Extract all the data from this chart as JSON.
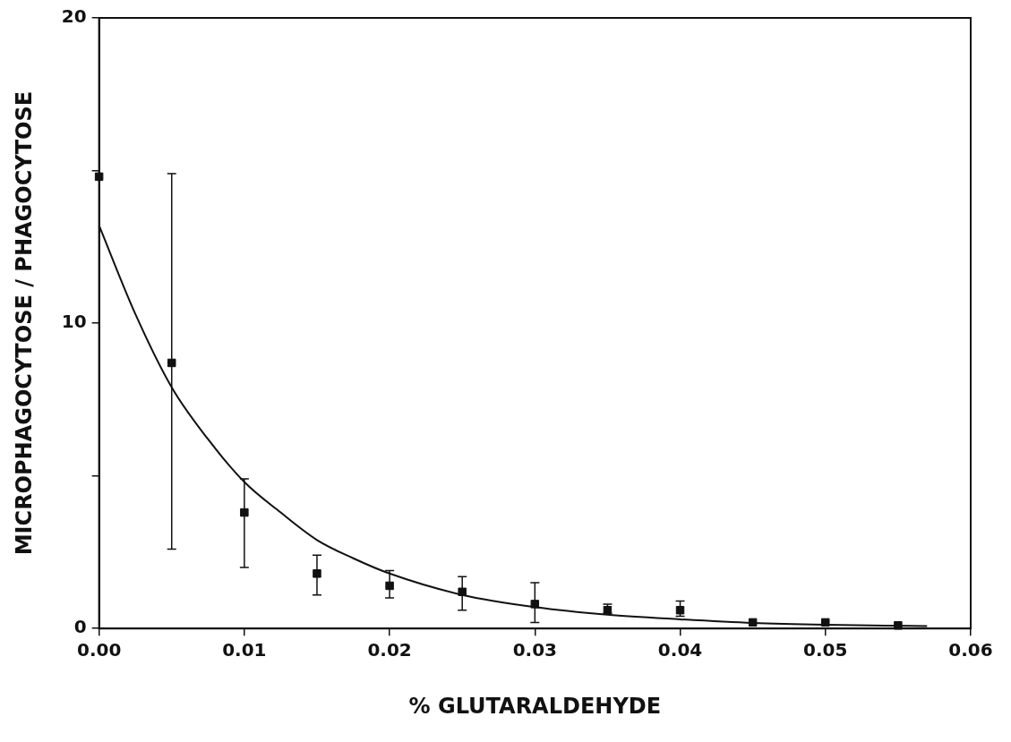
{
  "chart_data": {
    "type": "scatter",
    "xlabel": "% GLUTARALDEHYDE",
    "ylabel": "MICROPHAGOCYTOSE / PHAGOCYTOSE",
    "xlim": [
      0,
      0.06
    ],
    "ylim": [
      0,
      20
    ],
    "xticks": [
      {
        "value": 0,
        "label": "0.00"
      },
      {
        "value": 0.01,
        "label": "0.01"
      },
      {
        "value": 0.02,
        "label": "0.02"
      },
      {
        "value": 0.03,
        "label": "0.03"
      },
      {
        "value": 0.04,
        "label": "0.04"
      },
      {
        "value": 0.05,
        "label": "0.05"
      },
      {
        "value": 0.06,
        "label": "0.06"
      }
    ],
    "yticks": [
      0,
      {
        "value": 5,
        "label": null
      },
      10,
      {
        "value": 15,
        "label": null
      },
      20
    ],
    "grid": false,
    "legend": false,
    "series": [
      {
        "color": "#111111",
        "marker": "square",
        "x": [
          0,
          0.005,
          0.01,
          0.015,
          0.02,
          0.025,
          0.03,
          0.035,
          0.04,
          0.045,
          0.05,
          0.055
        ],
        "values": [
          14.8,
          8.7,
          3.8,
          1.8,
          1.4,
          1.2,
          0.8,
          0.6,
          0.6,
          0.2,
          0.2,
          0.1
        ],
        "errors": [
          null,
          [
            2.6,
            14.9
          ],
          [
            2.0,
            4.9
          ],
          [
            1.1,
            2.4
          ],
          [
            1.0,
            1.9
          ],
          [
            0.6,
            1.7
          ],
          [
            0.2,
            1.5
          ],
          [
            0.5,
            0.8
          ],
          [
            0.4,
            0.9
          ],
          null,
          null,
          null
        ]
      },
      {
        "type": "line",
        "color": "#111111",
        "marker": "none",
        "line_style": "solid",
        "x": [
          0,
          0.0025,
          0.005,
          0.0075,
          0.01,
          0.0125,
          0.015,
          0.0175,
          0.02,
          0.025,
          0.03,
          0.035,
          0.04,
          0.045,
          0.05,
          0.057
        ],
        "values": [
          13.2,
          10.3,
          7.9,
          6.2,
          4.8,
          3.8,
          2.9,
          2.3,
          1.8,
          1.1,
          0.7,
          0.45,
          0.3,
          0.18,
          0.12,
          0.08
        ]
      }
    ]
  }
}
